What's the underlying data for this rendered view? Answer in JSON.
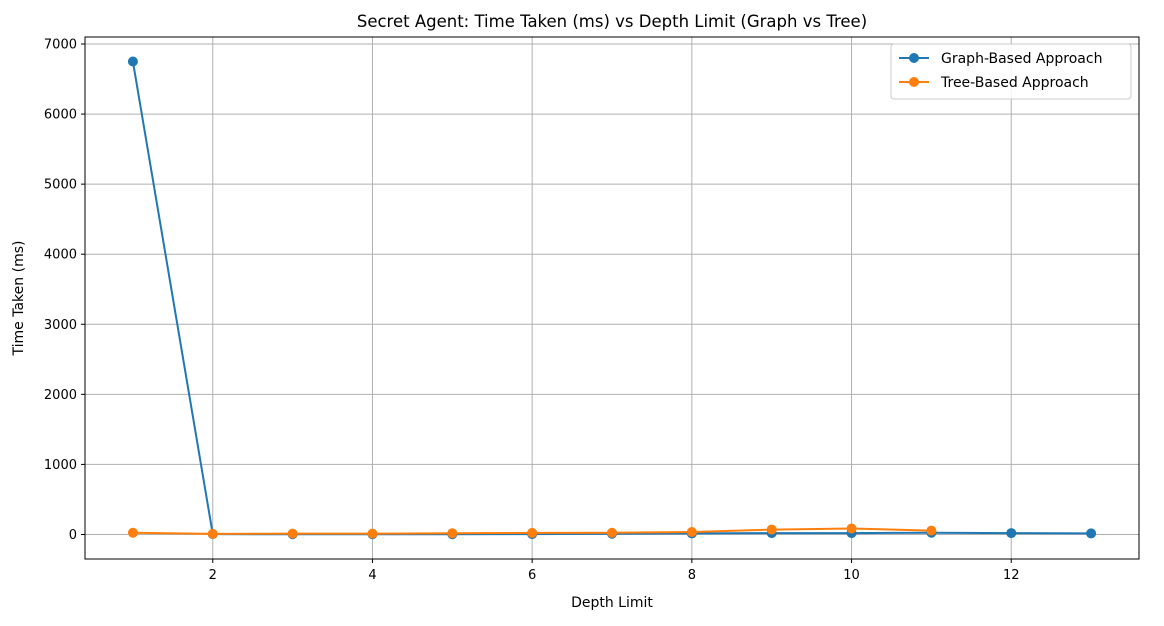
{
  "chart_data": {
    "type": "line",
    "title": "Secret Agent: Time Taken (ms) vs Depth Limit (Graph vs Tree)",
    "xlabel": "Depth Limit",
    "ylabel": "Time Taken (ms)",
    "xlim": [
      0.4,
      13.6
    ],
    "ylim": [
      -350,
      7100
    ],
    "xticks": [
      2,
      4,
      6,
      8,
      10,
      12
    ],
    "yticks": [
      0,
      1000,
      2000,
      3000,
      4000,
      5000,
      6000,
      7000
    ],
    "grid": true,
    "legend_position": "top-right",
    "series": [
      {
        "name": "Graph-Based Approach",
        "color": "#1f77b4",
        "marker": "circle",
        "x": [
          1,
          2,
          3,
          4,
          5,
          6,
          7,
          8,
          9,
          10,
          11,
          12,
          13
        ],
        "y": [
          6750,
          5,
          3,
          3,
          3,
          5,
          10,
          15,
          20,
          20,
          25,
          20,
          15
        ]
      },
      {
        "name": "Tree-Based Approach",
        "color": "#ff7f0e",
        "marker": "circle",
        "x": [
          1,
          2,
          3,
          4,
          5,
          6,
          7,
          8,
          9,
          10,
          11
        ],
        "y": [
          25,
          8,
          12,
          12,
          18,
          22,
          25,
          35,
          70,
          85,
          55
        ]
      }
    ]
  }
}
